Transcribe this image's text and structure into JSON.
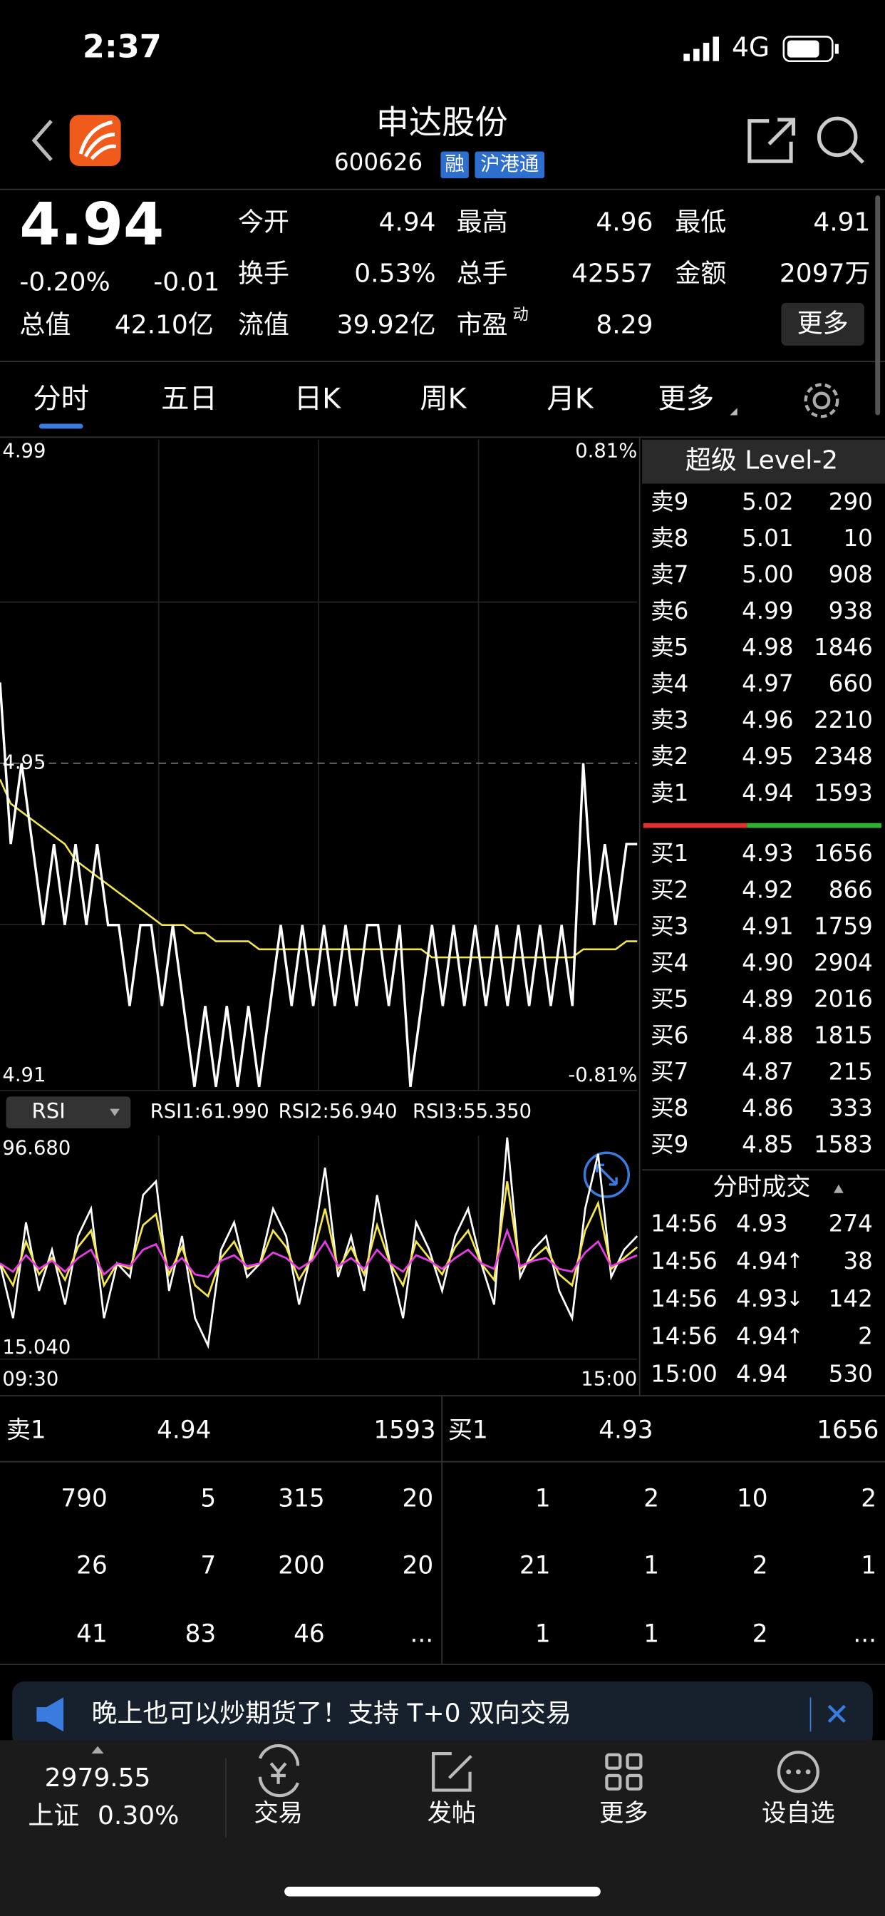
{
  "status_bar": {
    "time": "2:37",
    "network": "4G"
  },
  "header": {
    "name": "申达股份",
    "code": "600626",
    "tags": [
      "融",
      "沪港通"
    ]
  },
  "quote": {
    "price": "4.94",
    "change_pct": "-0.20%",
    "change": "-0.01",
    "stats": [
      [
        {
          "label": "今开",
          "value": "4.94",
          "color": "#3cc73c"
        },
        {
          "label": "最高",
          "value": "4.96",
          "color": "#f23b3b"
        },
        {
          "label": "最低",
          "value": "4.91",
          "color": "#3cc73c"
        }
      ],
      [
        {
          "label": "换手",
          "value": "0.53%",
          "color": "#ffffff"
        },
        {
          "label": "总手",
          "value": "42557",
          "color": "#ffffff"
        },
        {
          "label": "金额",
          "value": "2097万",
          "color": "#ffffff"
        }
      ],
      [
        {
          "label": "总值",
          "value": "42.10亿",
          "color": "#ffffff"
        },
        {
          "label": "流值",
          "value": "39.92亿",
          "color": "#ffffff"
        },
        {
          "label": "市盈",
          "sup": "动",
          "value": "8.29",
          "color": "#ffffff"
        }
      ]
    ],
    "more": "更多"
  },
  "tabs": [
    "分时",
    "五日",
    "日K",
    "周K",
    "月K",
    "更多"
  ],
  "chart": {
    "ylim": [
      4.91,
      4.99
    ],
    "pct_top": "0.81%",
    "pct_bottom": "-0.81%",
    "prev_close": 4.95,
    "price": [
      4.96,
      4.94,
      4.95,
      4.94,
      4.93,
      4.94,
      4.93,
      4.94,
      4.93,
      4.94,
      4.93,
      4.93,
      4.92,
      4.93,
      4.93,
      4.92,
      4.93,
      4.92,
      4.91,
      4.92,
      4.91,
      4.92,
      4.91,
      4.92,
      4.91,
      4.92,
      4.93,
      4.92,
      4.93,
      4.92,
      4.93,
      4.92,
      4.93,
      4.92,
      4.93,
      4.93,
      4.92,
      4.93,
      4.91,
      4.92,
      4.93,
      4.92,
      4.93,
      4.92,
      4.93,
      4.92,
      4.93,
      4.92,
      4.93,
      4.92,
      4.93,
      4.92,
      4.93,
      4.92,
      4.95,
      4.93,
      4.94,
      4.93,
      4.94,
      4.94
    ],
    "avg": [
      4.948,
      4.945,
      4.944,
      4.943,
      4.942,
      4.941,
      4.94,
      4.938,
      4.937,
      4.936,
      4.935,
      4.934,
      4.933,
      4.932,
      4.931,
      4.93,
      4.93,
      4.93,
      4.929,
      4.929,
      4.928,
      4.928,
      4.928,
      4.928,
      4.927,
      4.927,
      4.927,
      4.927,
      4.927,
      4.927,
      4.927,
      4.927,
      4.927,
      4.927,
      4.927,
      4.927,
      4.927,
      4.927,
      4.927,
      4.927,
      4.926,
      4.926,
      4.926,
      4.926,
      4.926,
      4.926,
      4.926,
      4.926,
      4.926,
      4.926,
      4.926,
      4.926,
      4.926,
      4.926,
      4.927,
      4.927,
      4.927,
      4.927,
      4.928,
      4.928
    ]
  },
  "rsi": {
    "selector": "RSI",
    "labels": [
      "RSI1:61.990",
      "RSI2:56.940",
      "RSI3:55.350"
    ],
    "ylim": [
      {
        "value": 15.04,
        "label": "15.040"
      },
      {
        "value": 96.68,
        "label": "96.680"
      }
    ],
    "x_start": "09:30",
    "x_end": "15:00",
    "series": [
      {
        "color": "#ffffff",
        "values": [
          50,
          30,
          65,
          40,
          55,
          35,
          60,
          70,
          30,
          50,
          45,
          75,
          80,
          40,
          60,
          30,
          20,
          55,
          65,
          45,
          50,
          70,
          60,
          35,
          55,
          85,
          45,
          60,
          40,
          75,
          50,
          30,
          65,
          55,
          40,
          60,
          70,
          50,
          35,
          96,
          45,
          55,
          60,
          40,
          30,
          70,
          90,
          45,
          55,
          60
        ]
      },
      {
        "color": "#f5e64a",
        "values": [
          50,
          42,
          58,
          46,
          52,
          44,
          56,
          62,
          42,
          50,
          48,
          64,
          68,
          46,
          56,
          42,
          38,
          52,
          58,
          48,
          50,
          62,
          56,
          44,
          52,
          70,
          48,
          56,
          46,
          64,
          50,
          42,
          58,
          52,
          46,
          56,
          62,
          50,
          44,
          80,
          48,
          52,
          56,
          46,
          42,
          62,
          72,
          48,
          52,
          56
        ]
      },
      {
        "color": "#e93be9",
        "values": [
          50,
          47,
          53,
          48,
          51,
          47,
          52,
          55,
          46,
          50,
          49,
          55,
          57,
          48,
          52,
          46,
          45,
          51,
          53,
          49,
          50,
          54,
          52,
          48,
          51,
          58,
          49,
          52,
          48,
          55,
          50,
          47,
          53,
          51,
          48,
          52,
          55,
          50,
          48,
          62,
          49,
          51,
          52,
          48,
          47,
          54,
          58,
          49,
          51,
          53
        ]
      }
    ]
  },
  "level2": {
    "title": "超级 Level-2",
    "asks": [
      {
        "label": "卖9",
        "price": "5.02",
        "volume": "290",
        "color": "#f23b3b"
      },
      {
        "label": "卖8",
        "price": "5.01",
        "volume": "10",
        "color": "#f23b3b"
      },
      {
        "label": "卖7",
        "price": "5.00",
        "volume": "908",
        "color": "#f23b3b"
      },
      {
        "label": "卖6",
        "price": "4.99",
        "volume": "938",
        "color": "#f23b3b"
      },
      {
        "label": "卖5",
        "price": "4.98",
        "volume": "1846",
        "color": "#f23b3b"
      },
      {
        "label": "卖4",
        "price": "4.97",
        "volume": "660",
        "color": "#f23b3b"
      },
      {
        "label": "卖3",
        "price": "4.96",
        "volume": "2210",
        "color": "#f23b3b"
      },
      {
        "label": "卖2",
        "price": "4.95",
        "volume": "2348",
        "color": "#ffffff"
      },
      {
        "label": "卖1",
        "price": "4.94",
        "volume": "1593",
        "color": "#3cc73c"
      }
    ],
    "bids": [
      {
        "label": "买1",
        "price": "4.93",
        "volume": "1656",
        "color": "#3cc73c"
      },
      {
        "label": "买2",
        "price": "4.92",
        "volume": "866",
        "color": "#3cc73c"
      },
      {
        "label": "买3",
        "price": "4.91",
        "volume": "1759",
        "color": "#3cc73c"
      },
      {
        "label": "买4",
        "price": "4.90",
        "volume": "2904",
        "color": "#3cc73c"
      },
      {
        "label": "买5",
        "price": "4.89",
        "volume": "2016",
        "color": "#3cc73c"
      },
      {
        "label": "买6",
        "price": "4.88",
        "volume": "1815",
        "color": "#3cc73c"
      },
      {
        "label": "买7",
        "price": "4.87",
        "volume": "215",
        "color": "#3cc73c"
      },
      {
        "label": "买8",
        "price": "4.86",
        "volume": "333",
        "color": "#3cc73c"
      },
      {
        "label": "买9",
        "price": "4.85",
        "volume": "1583",
        "color": "#3cc73c"
      }
    ]
  },
  "trades": {
    "title": "分时成交",
    "rows": [
      {
        "time": "14:56",
        "price": "4.93",
        "volume": "274",
        "color": "#3cc73c"
      },
      {
        "time": "14:56",
        "price": "4.94",
        "arrow": "↑",
        "volume": "38",
        "color": "#f23b3b"
      },
      {
        "time": "14:56",
        "price": "4.93",
        "arrow": "↓",
        "volume": "142",
        "color": "#3cc73c"
      },
      {
        "time": "14:56",
        "price": "4.94",
        "arrow": "↑",
        "volume": "2",
        "color": "#f23b3b"
      },
      {
        "time": "15:00",
        "price": "4.94",
        "volume": "530",
        "color": "#3cc73c"
      }
    ]
  },
  "queue": {
    "ask_label": "卖1",
    "ask_price": "4.94",
    "ask_volume": "1593",
    "bid_label": "买1",
    "bid_price": "4.93",
    "bid_volume": "1656",
    "ask_orders": [
      [
        "790",
        "5",
        "315",
        "20"
      ],
      [
        "26",
        "7",
        "200",
        "20"
      ],
      [
        "41",
        "83",
        "46",
        "..."
      ]
    ],
    "bid_orders": [
      [
        "1",
        "2",
        "10",
        "2"
      ],
      [
        "21",
        "1",
        "2",
        "1"
      ],
      [
        "1",
        "1",
        "2",
        "..."
      ]
    ]
  },
  "banner": "晚上也可以炒期货了！支持 T+0 双向交易",
  "tabbar": {
    "index_value": "2979.55",
    "index_name": "上证",
    "index_change": "0.30%",
    "items": [
      "交易",
      "发帖",
      "更多",
      "设自选"
    ]
  }
}
